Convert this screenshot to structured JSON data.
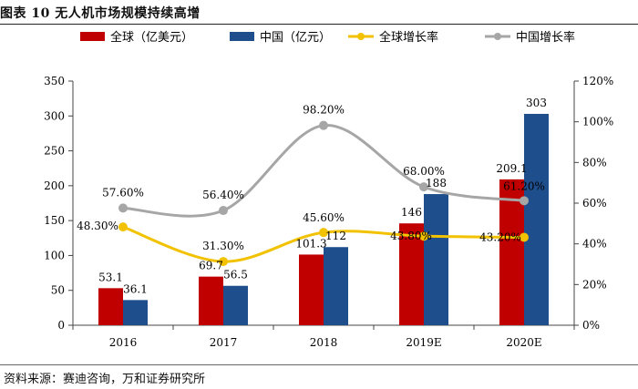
{
  "figure": {
    "title": "图表 10   无人机市场规模持续高增",
    "source": "资料来源：赛迪咨询，万和证券研究所"
  },
  "colors": {
    "global_bar": "#C00000",
    "china_bar": "#1F4E8C",
    "global_line": "#F2C200",
    "china_line": "#A6A6A6"
  },
  "chart_data": {
    "type": "bar",
    "categories": [
      "2016",
      "2017",
      "2018",
      "2019E",
      "2020E"
    ],
    "series": [
      {
        "name": "全球（亿美元）",
        "kind": "bar",
        "axis": "left",
        "values": [
          53.1,
          69.7,
          101.3,
          146,
          209.1
        ],
        "labels": [
          "53.1",
          "69.7",
          "101.3",
          "146",
          "209.1"
        ]
      },
      {
        "name": "中国（亿元）",
        "kind": "bar",
        "axis": "left",
        "values": [
          36.1,
          56.5,
          112,
          188,
          303
        ],
        "labels": [
          "36.1",
          "56.5",
          "112",
          "188",
          "303"
        ]
      },
      {
        "name": "全球增长率",
        "kind": "line",
        "axis": "right",
        "values": [
          48.3,
          31.3,
          45.6,
          43.8,
          43.2
        ],
        "labels": [
          "48.30%",
          "31.30%",
          "45.60%",
          "43.80%",
          "43.20%"
        ]
      },
      {
        "name": "中国增长率",
        "kind": "line",
        "axis": "right",
        "values": [
          57.6,
          56.4,
          98.2,
          68.0,
          61.2
        ],
        "labels": [
          "57.60%",
          "56.40%",
          "98.20%",
          "68.00%",
          "61.20%"
        ]
      }
    ],
    "ylim": [
      0,
      350
    ],
    "yticks": [
      "0",
      "50",
      "100",
      "150",
      "200",
      "250",
      "300",
      "350"
    ],
    "y2lim": [
      0,
      120
    ],
    "y2ticks": [
      "0%",
      "20%",
      "40%",
      "60%",
      "80%",
      "100%",
      "120%"
    ],
    "legend_position": "top",
    "grid": false
  }
}
